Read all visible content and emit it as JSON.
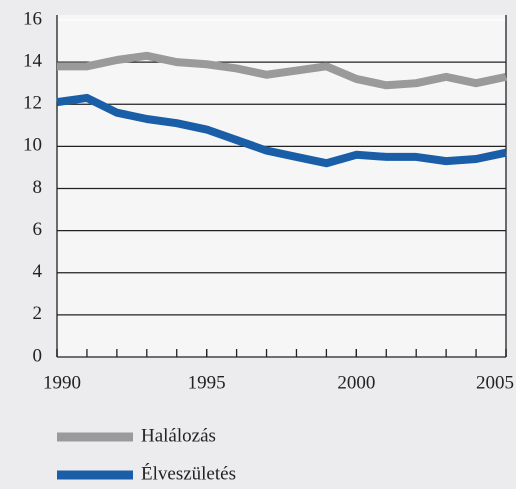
{
  "chart_data": {
    "type": "line",
    "x": [
      1990,
      1991,
      1992,
      1993,
      1994,
      1995,
      1996,
      1997,
      1998,
      1999,
      2000,
      2001,
      2002,
      2003,
      2004,
      2005
    ],
    "series": [
      {
        "name": "Halálozás",
        "color": "#9a9a9a",
        "values": [
          13.8,
          13.8,
          14.1,
          14.3,
          14.0,
          13.9,
          13.7,
          13.4,
          13.6,
          13.8,
          13.2,
          12.9,
          13.0,
          13.3,
          13.0,
          13.3
        ]
      },
      {
        "name": "Élveszületés",
        "color": "#1a5ea8",
        "values": [
          12.1,
          12.3,
          11.6,
          11.3,
          11.1,
          10.8,
          10.3,
          9.8,
          9.5,
          9.2,
          9.6,
          9.5,
          9.5,
          9.3,
          9.4,
          9.7
        ]
      }
    ],
    "xlim": [
      1990,
      2005
    ],
    "xticks": [
      1990,
      1995,
      2000,
      2005
    ],
    "ylim": [
      0,
      16
    ],
    "yticks": [
      0,
      2,
      4,
      6,
      8,
      10,
      12,
      14,
      16
    ],
    "grid": true,
    "legend": "bottom"
  }
}
